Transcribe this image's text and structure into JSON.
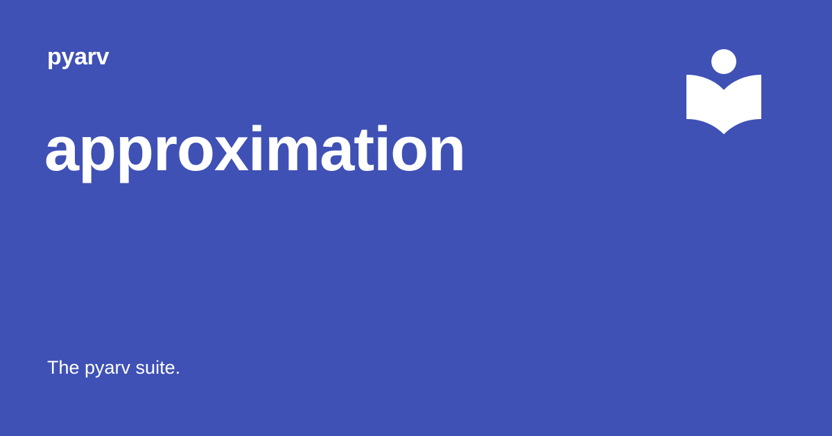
{
  "colors": {
    "background": "#3f51b5",
    "foreground": "#ffffff"
  },
  "header": {
    "site_name": "pyarv"
  },
  "main": {
    "title": "approximation",
    "description": "The pyarv suite."
  },
  "logo": {
    "icon": "reading-person-book-icon"
  }
}
